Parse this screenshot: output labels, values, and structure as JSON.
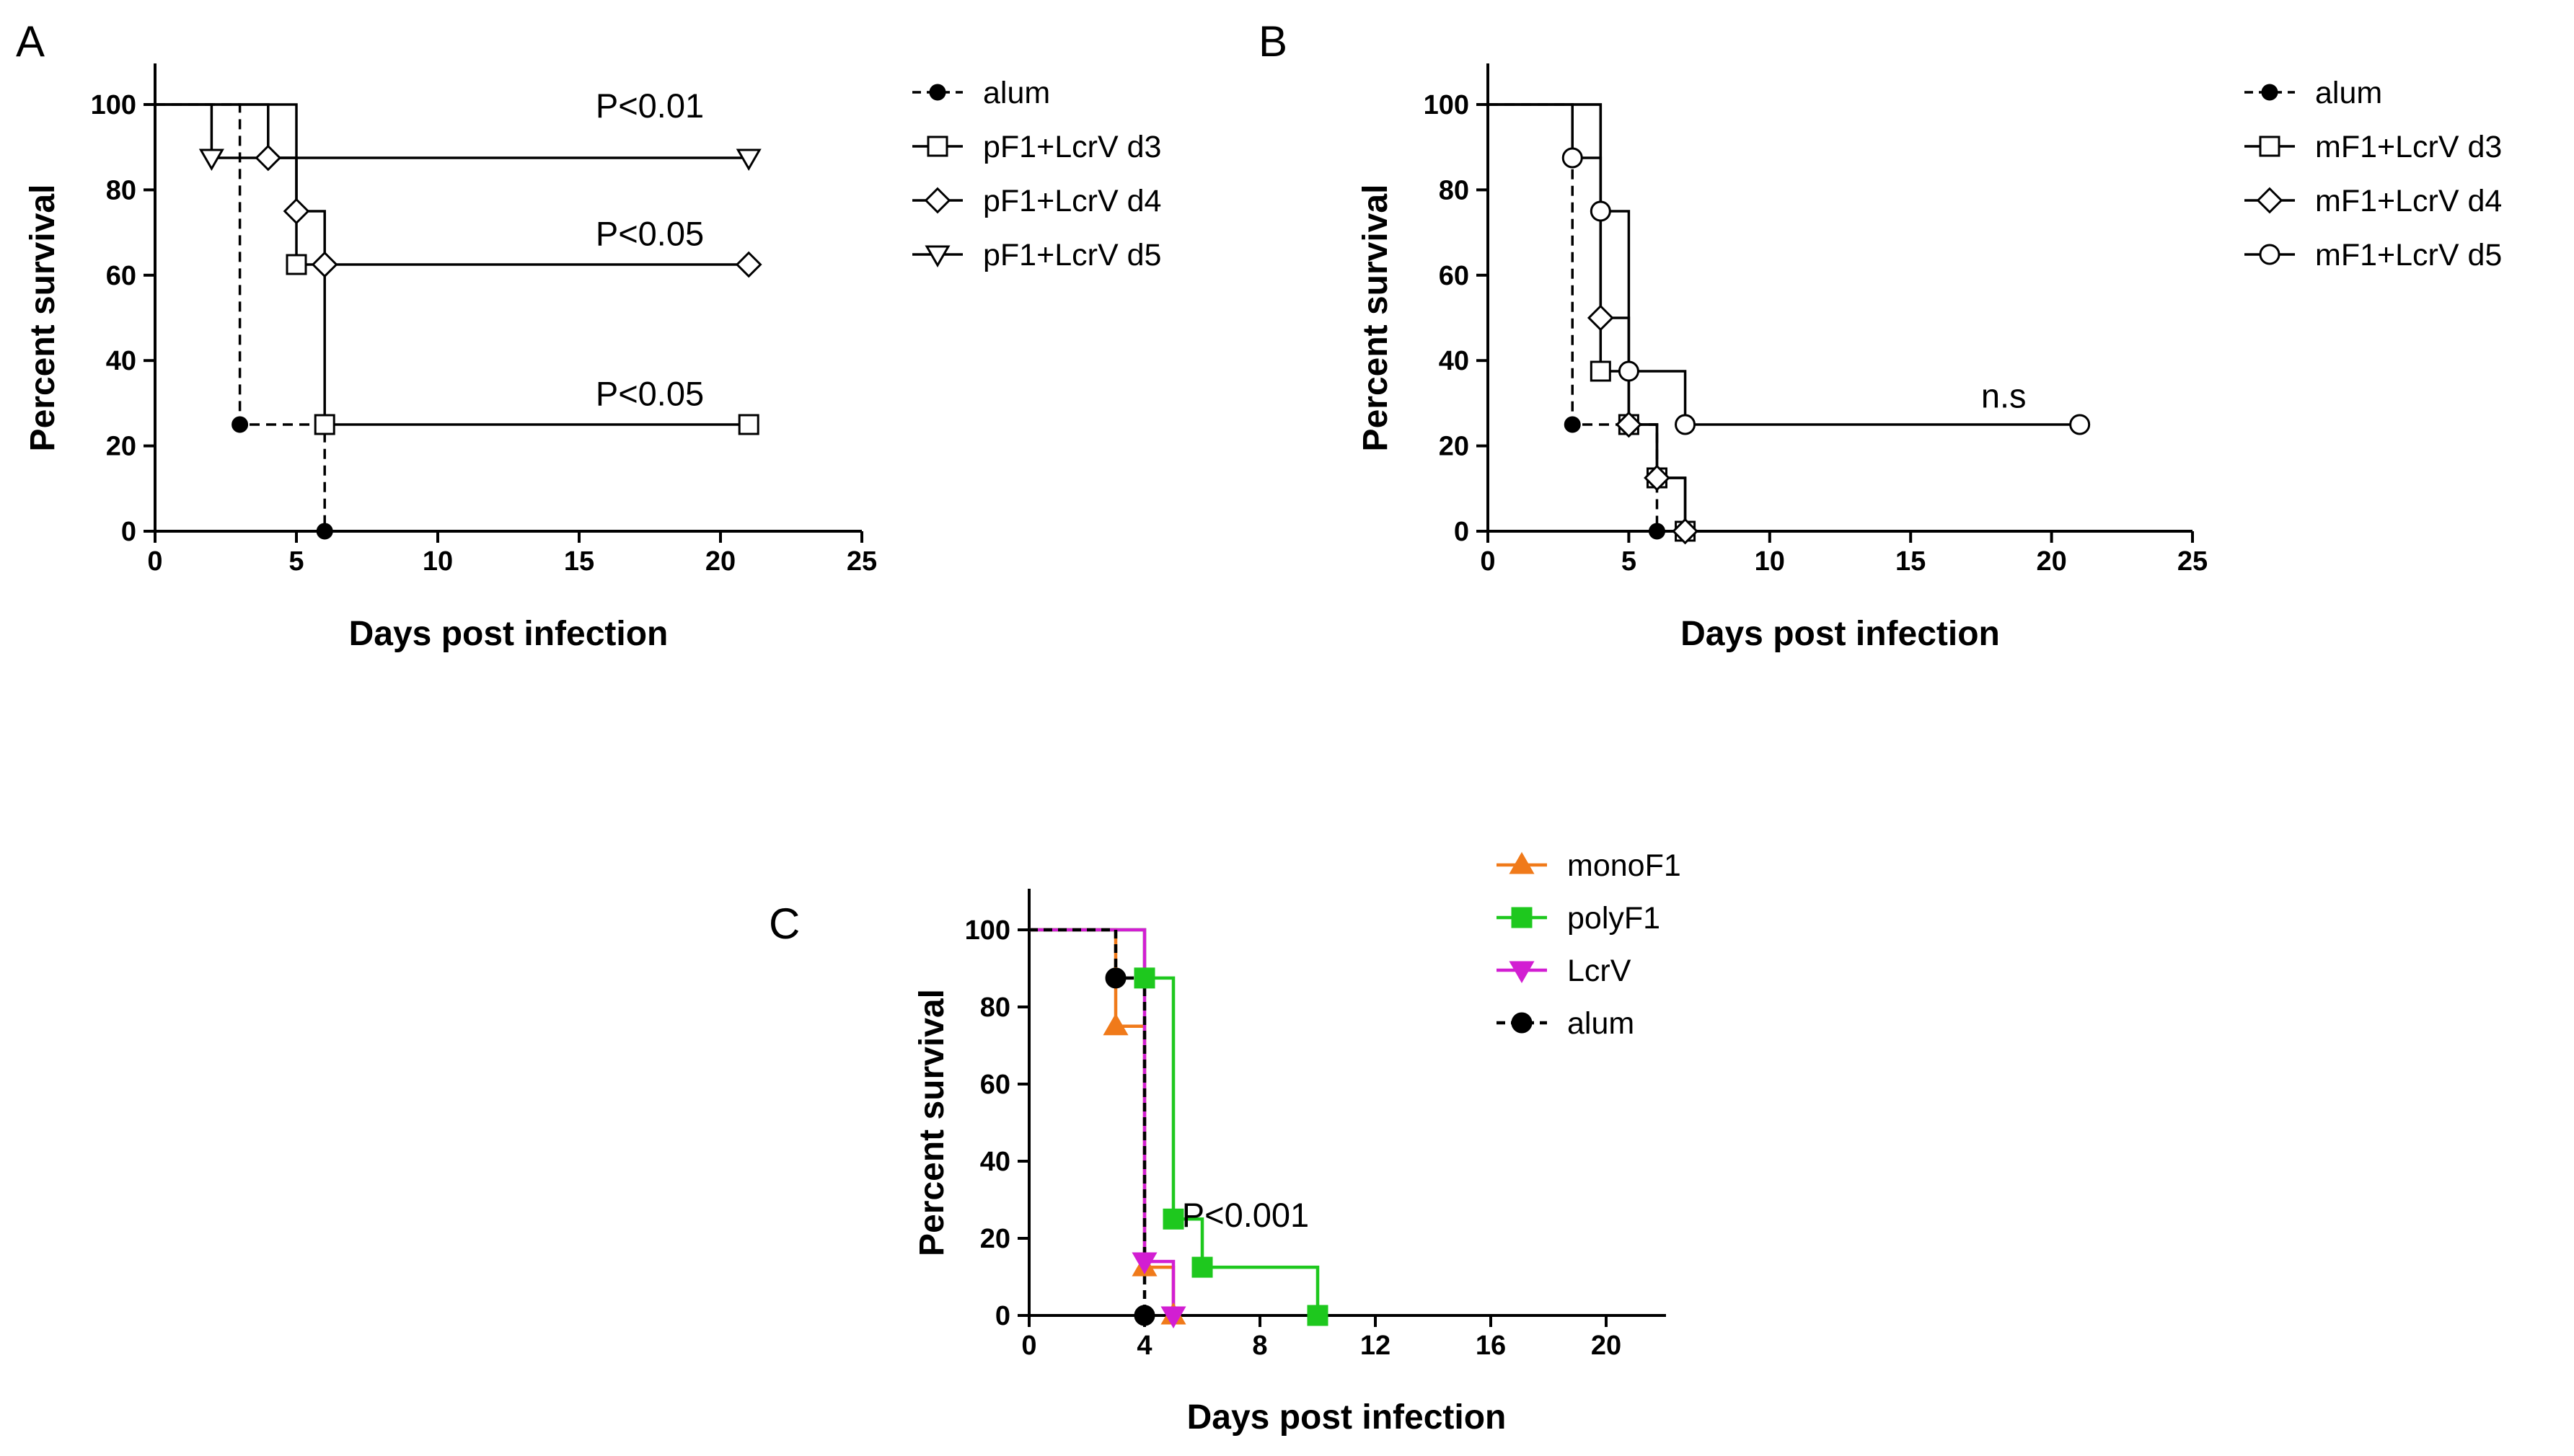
{
  "chart_data": [
    {
      "panel": "A",
      "type": "line",
      "subtype": "kaplan-meier survival (step)",
      "xlabel": "Days post infection",
      "ylabel": "Percent survival",
      "xlim": [
        0,
        25
      ],
      "ylim": [
        0,
        100
      ],
      "xticks": [
        0,
        5,
        10,
        15,
        20,
        25
      ],
      "yticks": [
        0,
        20,
        40,
        60,
        80,
        100
      ],
      "legend_position": "right",
      "series": [
        {
          "name": "alum",
          "marker": "filled-circle",
          "line": "dashed",
          "color": "#000000",
          "steps": [
            [
              0,
              100
            ],
            [
              3,
              25
            ],
            [
              6,
              0
            ]
          ],
          "markers": [
            [
              3,
              25
            ],
            [
              6,
              0
            ]
          ]
        },
        {
          "name": "pF1+LcrV d3",
          "marker": "open-square",
          "line": "solid",
          "color": "#000000",
          "steps": [
            [
              0,
              100
            ],
            [
              5,
              62.5
            ],
            [
              6,
              25
            ],
            [
              21,
              25
            ]
          ],
          "markers": [
            [
              5,
              62.5
            ],
            [
              6,
              25
            ],
            [
              21,
              25
            ]
          ]
        },
        {
          "name": "pF1+LcrV d4",
          "marker": "open-diamond",
          "line": "solid",
          "color": "#000000",
          "steps": [
            [
              0,
              100
            ],
            [
              4,
              87.5
            ],
            [
              5,
              75
            ],
            [
              6,
              62.5
            ],
            [
              21,
              62.5
            ]
          ],
          "markers": [
            [
              4,
              87.5
            ],
            [
              5,
              75
            ],
            [
              6,
              62.5
            ],
            [
              21,
              62.5
            ]
          ]
        },
        {
          "name": "pF1+LcrV d5",
          "marker": "open-triangle-down",
          "line": "solid",
          "color": "#000000",
          "steps": [
            [
              0,
              100
            ],
            [
              2,
              87.5
            ],
            [
              21,
              87.5
            ]
          ],
          "markers": [
            [
              2,
              87.5
            ],
            [
              21,
              87.5
            ]
          ]
        }
      ],
      "annotations": [
        {
          "text": "P<0.01",
          "x": 17.5,
          "y": 97
        },
        {
          "text": "P<0.05",
          "x": 17.5,
          "y": 67
        },
        {
          "text": "P<0.05",
          "x": 17.5,
          "y": 29.5
        }
      ]
    },
    {
      "panel": "B",
      "type": "line",
      "subtype": "kaplan-meier survival (step)",
      "xlabel": "Days post infection",
      "ylabel": "Percent survival",
      "xlim": [
        0,
        25
      ],
      "ylim": [
        0,
        100
      ],
      "xticks": [
        0,
        5,
        10,
        15,
        20,
        25
      ],
      "yticks": [
        0,
        20,
        40,
        60,
        80,
        100
      ],
      "legend_position": "right",
      "series": [
        {
          "name": "alum",
          "marker": "filled-circle",
          "line": "dashed",
          "color": "#000000",
          "steps": [
            [
              0,
              100
            ],
            [
              3,
              25
            ],
            [
              6,
              0
            ]
          ],
          "markers": [
            [
              3,
              25
            ],
            [
              6,
              0
            ]
          ]
        },
        {
          "name": "mF1+LcrV d3",
          "marker": "open-square",
          "line": "solid",
          "color": "#000000",
          "steps": [
            [
              0,
              100
            ],
            [
              4,
              37.5
            ],
            [
              5,
              25
            ],
            [
              6,
              12.5
            ],
            [
              7,
              0
            ]
          ],
          "markers": [
            [
              4,
              37.5
            ],
            [
              5,
              25
            ],
            [
              6,
              12.5
            ],
            [
              7,
              0
            ]
          ]
        },
        {
          "name": "mF1+LcrV d4",
          "marker": "open-diamond",
          "line": "solid",
          "color": "#000000",
          "steps": [
            [
              0,
              100
            ],
            [
              4,
              50
            ],
            [
              5,
              25
            ],
            [
              6,
              12.5
            ],
            [
              7,
              0
            ]
          ],
          "markers": [
            [
              4,
              50
            ],
            [
              5,
              25
            ],
            [
              6,
              12.5
            ],
            [
              7,
              0
            ]
          ]
        },
        {
          "name": "mF1+LcrV d5",
          "marker": "open-circle",
          "line": "solid",
          "color": "#000000",
          "steps": [
            [
              0,
              100
            ],
            [
              3,
              87.5
            ],
            [
              4,
              75
            ],
            [
              5,
              37.5
            ],
            [
              7,
              25
            ],
            [
              21,
              25
            ]
          ],
          "markers": [
            [
              3,
              87.5
            ],
            [
              4,
              75
            ],
            [
              5,
              37.5
            ],
            [
              7,
              25
            ],
            [
              21,
              25
            ]
          ]
        }
      ],
      "annotations": [
        {
          "text": "n.s",
          "x": 18.3,
          "y": 29
        }
      ]
    },
    {
      "panel": "C",
      "type": "line",
      "subtype": "kaplan-meier survival (step)",
      "xlabel": "Days post infection",
      "ylabel": "Percent survival",
      "xlim": [
        0,
        22
      ],
      "ylim": [
        0,
        100
      ],
      "xticks": [
        0,
        4,
        8,
        12,
        16,
        20
      ],
      "yticks": [
        0,
        20,
        40,
        60,
        80,
        100
      ],
      "legend_position": "top-right",
      "series": [
        {
          "name": "monoF1",
          "marker": "filled-triangle-up",
          "line": "solid",
          "color": "#f07a1a",
          "steps": [
            [
              0,
              100
            ],
            [
              3,
              75
            ],
            [
              4,
              12.5
            ],
            [
              5,
              0
            ]
          ],
          "markers": [
            [
              3,
              75
            ],
            [
              4,
              12.5
            ],
            [
              5,
              0
            ]
          ]
        },
        {
          "name": "polyF1",
          "marker": "filled-square",
          "line": "solid",
          "color": "#1ec81e",
          "steps": [
            [
              0,
              100
            ],
            [
              4,
              87.5
            ],
            [
              5,
              25
            ],
            [
              6,
              12.5
            ],
            [
              10,
              0
            ]
          ],
          "markers": [
            [
              4,
              87.5
            ],
            [
              5,
              25
            ],
            [
              6,
              12.5
            ],
            [
              10,
              0
            ]
          ]
        },
        {
          "name": "LcrV",
          "marker": "filled-triangle-down",
          "line": "solid",
          "color": "#d21ed2",
          "steps": [
            [
              0,
              100
            ],
            [
              4,
              14
            ],
            [
              5,
              0
            ]
          ],
          "markers": [
            [
              4,
              14
            ],
            [
              5,
              0
            ]
          ]
        },
        {
          "name": "alum",
          "marker": "filled-circle",
          "line": "dashed",
          "color": "#000000",
          "steps": [
            [
              0,
              100
            ],
            [
              3,
              87.5
            ],
            [
              4,
              0
            ]
          ],
          "markers": [
            [
              3,
              87.5
            ],
            [
              4,
              0
            ]
          ]
        }
      ],
      "annotations": [
        {
          "text": "P<0.001",
          "x": 7.5,
          "y": 23
        }
      ]
    }
  ]
}
